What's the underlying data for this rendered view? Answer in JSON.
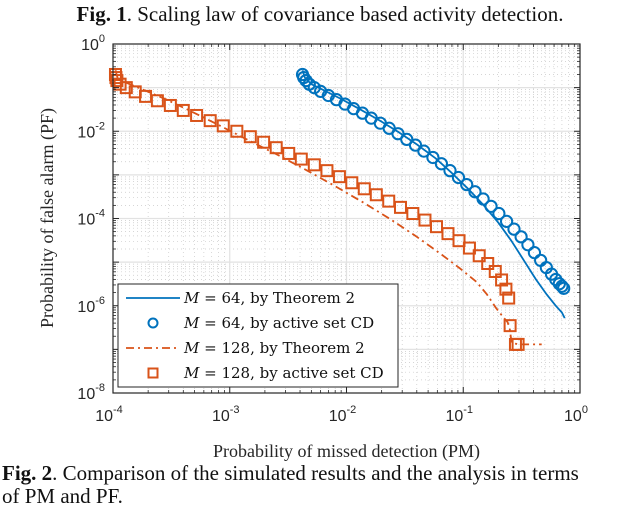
{
  "captions": {
    "fig1_label": "Fig. 1",
    "fig1_text": ". Scaling law of covariance based activity detection.",
    "fig2_label": "Fig. 2",
    "fig2_text_line1": ". Comparison of the simulated results and the analysis in terms",
    "fig2_text_line2": "of PM and PF."
  },
  "chart_data": {
    "type": "line",
    "title": "",
    "xlabel": "Probability of missed detection (PM)",
    "ylabel": "Probability of false alarm (PF)",
    "xscale": "log",
    "yscale": "log",
    "xlim": [
      0.0001,
      1
    ],
    "ylim": [
      1e-08,
      1
    ],
    "grid": "major and minor",
    "legend_position": "bottom-left",
    "x_ticks": [
      {
        "base": "10",
        "exp": "-4"
      },
      {
        "base": "10",
        "exp": "-3"
      },
      {
        "base": "10",
        "exp": "-2"
      },
      {
        "base": "10",
        "exp": "-1"
      },
      {
        "base": "10",
        "exp": "0"
      }
    ],
    "y_ticks": [
      {
        "base": "10",
        "exp": "0"
      },
      {
        "base": "10",
        "exp": "-2"
      },
      {
        "base": "10",
        "exp": "-4"
      },
      {
        "base": "10",
        "exp": "-6"
      },
      {
        "base": "10",
        "exp": "-8"
      }
    ],
    "colors": {
      "blue": "#0072BD",
      "orange": "#D95319"
    },
    "series": [
      {
        "name": "M = 64, by Theorem 2",
        "legend_var": "M",
        "legend_rest": " = 64, by Theorem 2",
        "style": "solid-line",
        "color": "#0072BD",
        "x": [
          0.0042,
          0.0044,
          0.005,
          0.0065,
          0.009,
          0.013,
          0.019,
          0.028,
          0.04,
          0.058,
          0.08,
          0.11,
          0.15,
          0.2,
          0.26,
          0.33,
          0.42,
          0.52,
          0.62,
          0.7,
          0.74
        ],
        "y": [
          0.25,
          0.17,
          0.12,
          0.085,
          0.055,
          0.032,
          0.018,
          0.0095,
          0.005,
          0.0024,
          0.0011,
          0.00048,
          0.0002,
          8e-05,
          3e-05,
          1.1e-05,
          4e-06,
          1.8e-06,
          1e-06,
          7e-07,
          5.2e-07
        ]
      },
      {
        "name": "M = 64, by active set CD",
        "legend_var": "M",
        "legend_rest": " = 64, by active set CD",
        "style": "circle-markers",
        "color": "#0072BD",
        "x": [
          0.0042,
          0.0043,
          0.0045,
          0.0048,
          0.0053,
          0.006,
          0.007,
          0.0082,
          0.0097,
          0.0115,
          0.0137,
          0.0163,
          0.0195,
          0.0232,
          0.0276,
          0.0328,
          0.039,
          0.046,
          0.055,
          0.065,
          0.077,
          0.091,
          0.107,
          0.126,
          0.148,
          0.173,
          0.202,
          0.235,
          0.272,
          0.313,
          0.358,
          0.407,
          0.46,
          0.515,
          0.57,
          0.62,
          0.665,
          0.7,
          0.725
        ],
        "y": [
          0.2,
          0.17,
          0.145,
          0.12,
          0.1,
          0.082,
          0.066,
          0.053,
          0.042,
          0.033,
          0.026,
          0.02,
          0.0153,
          0.0117,
          0.0088,
          0.0065,
          0.0048,
          0.0035,
          0.0025,
          0.0018,
          0.00125,
          0.00087,
          0.0006,
          0.00041,
          0.00028,
          0.00019,
          0.00013,
          8.6e-05,
          5.7e-05,
          3.8e-05,
          2.5e-05,
          1.65e-05,
          1.1e-05,
          7.5e-06,
          5.3e-06,
          4e-06,
          3.2e-06,
          2.8e-06,
          2.5e-06
        ]
      },
      {
        "name": "M = 128, by Theorem 2",
        "legend_var": "M",
        "legend_rest": " = 128, by Theorem 2",
        "style": "dash-dot-line",
        "color": "#D95319",
        "x": [
          0.000105,
          0.00011,
          0.00013,
          0.00018,
          0.00028,
          0.00045,
          0.0008,
          0.0014,
          0.0025,
          0.0045,
          0.008,
          0.014,
          0.024,
          0.04,
          0.065,
          0.095,
          0.13,
          0.16,
          0.19,
          0.22,
          0.24,
          0.25,
          0.26,
          0.3,
          0.38,
          0.47
        ],
        "y": [
          0.25,
          0.16,
          0.13,
          0.09,
          0.055,
          0.03,
          0.014,
          0.0065,
          0.003,
          0.0013,
          0.00055,
          0.00023,
          9.5e-05,
          3.8e-05,
          1.5e-05,
          7e-06,
          3.5e-06,
          1.8e-06,
          9e-07,
          5.5e-07,
          4.2e-07,
          3e-07,
          1.4e-07,
          1.3e-07,
          1.3e-07,
          1.3e-07
        ]
      },
      {
        "name": "M = 128, by active set CD",
        "legend_var": "M",
        "legend_rest": " = 128, by active set CD",
        "style": "square-markers",
        "color": "#D95319",
        "x": [
          0.000105,
          0.000106,
          0.000108,
          0.000115,
          0.00013,
          0.000155,
          0.00019,
          0.00024,
          0.00031,
          0.0004,
          0.00052,
          0.00068,
          0.00088,
          0.00115,
          0.0015,
          0.00195,
          0.0025,
          0.0032,
          0.0041,
          0.0053,
          0.0068,
          0.0087,
          0.0111,
          0.0142,
          0.018,
          0.023,
          0.029,
          0.037,
          0.047,
          0.059,
          0.074,
          0.092,
          0.113,
          0.137,
          0.162,
          0.188,
          0.213,
          0.232,
          0.245,
          0.252,
          0.28,
          0.295
        ],
        "y": [
          0.2,
          0.17,
          0.145,
          0.12,
          0.1,
          0.08,
          0.063,
          0.05,
          0.039,
          0.03,
          0.023,
          0.0175,
          0.0133,
          0.01,
          0.0075,
          0.0056,
          0.0042,
          0.0031,
          0.0023,
          0.0017,
          0.00125,
          0.00091,
          0.00066,
          0.00048,
          0.00035,
          0.00025,
          0.00018,
          0.00013,
          9.2e-05,
          6.5e-05,
          4.5e-05,
          3.1e-05,
          2.1e-05,
          1.4e-05,
          9.3e-06,
          6.1e-06,
          3.9e-06,
          2.4e-06,
          1.5e-06,
          3.5e-07,
          1.3e-07,
          1.3e-07
        ]
      }
    ]
  }
}
